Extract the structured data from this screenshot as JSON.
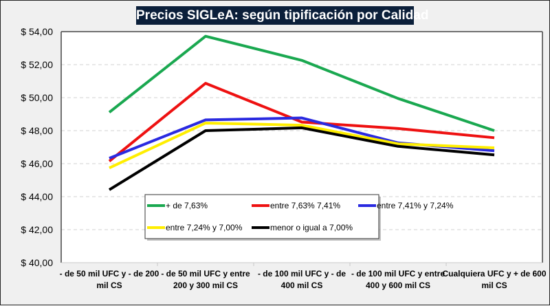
{
  "chart_data": {
    "type": "line",
    "title": "Precios SIGLeA: según tipificación por Calidad",
    "xlabel": "",
    "ylabel": "",
    "ylim": [
      40,
      54
    ],
    "ytick_step": 2,
    "ytick_labels": [
      "$ 40,00",
      "$ 42,00",
      "$ 44,00",
      "$ 46,00",
      "$ 48,00",
      "$ 50,00",
      "$ 52,00",
      "$ 54,00"
    ],
    "grid": true,
    "legend_position": "inside-bottom-left",
    "categories": [
      [
        "- de 50 mil UFC y - de 200",
        "mil CS"
      ],
      [
        "- de 50 mil UFC y entre",
        "200 y 300 mil CS"
      ],
      [
        "- de 100 mil UFC y - de",
        "400 mil CS"
      ],
      [
        "- de 100 mil UFC y entre",
        "400 y 600 mil CS"
      ],
      [
        "Cualquiera UFC y + de 600",
        "mil CS"
      ]
    ],
    "series": [
      {
        "name": "+ de 7,63%",
        "color": "#1aa850",
        "values": [
          49.11,
          53.72,
          52.26,
          49.95,
          48.0
        ]
      },
      {
        "name": "entre 7,63% 7,41%",
        "color": "#ee1111",
        "values": [
          46.15,
          50.87,
          48.52,
          48.13,
          47.57
        ]
      },
      {
        "name": "entre 7,41% y 7,24%",
        "color": "#2a2ae0",
        "values": [
          46.33,
          48.65,
          48.77,
          47.26,
          46.78
        ]
      },
      {
        "name": "entre 7,24% y 7,00%",
        "color": "#ffee00",
        "values": [
          45.74,
          48.46,
          48.33,
          47.2,
          46.96
        ]
      },
      {
        "name": "menor o igual a 7,00%",
        "color": "#000000",
        "values": [
          44.42,
          48.0,
          48.17,
          47.05,
          46.53
        ]
      }
    ]
  }
}
